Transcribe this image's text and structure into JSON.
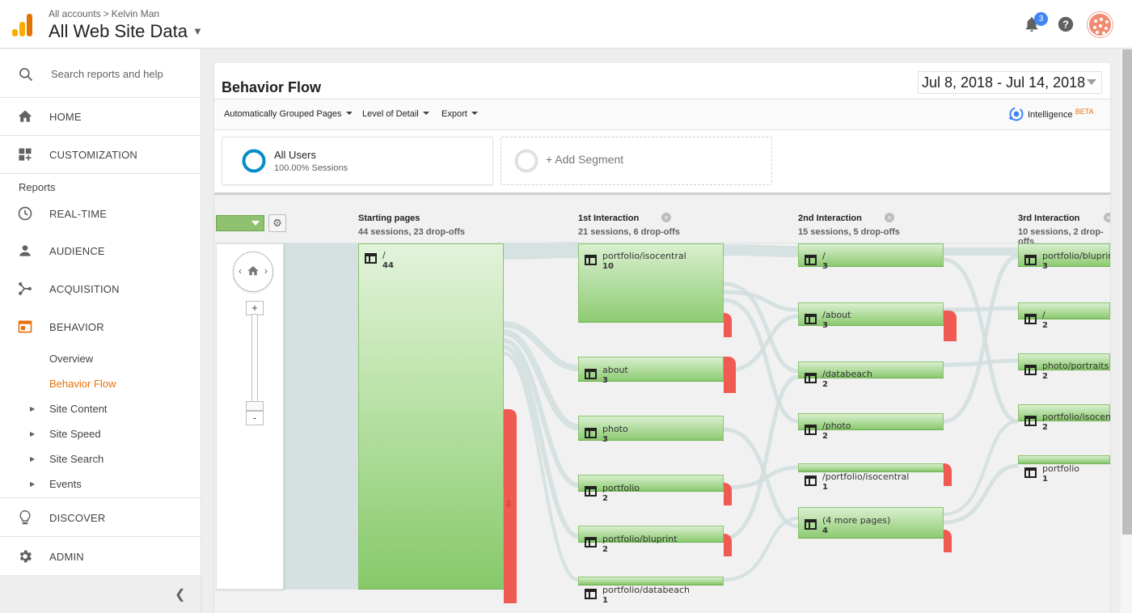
{
  "header": {
    "breadcrumb": [
      "All accounts",
      "Kelvin Man"
    ],
    "breadcrumb_sep": ">",
    "property": "All Web Site Data",
    "notification_count": "3"
  },
  "sidebar": {
    "search_placeholder": "Search reports and help",
    "home": "HOME",
    "customization": "CUSTOMIZATION",
    "reports_heading": "Reports",
    "realtime": "REAL-TIME",
    "audience": "AUDIENCE",
    "acquisition": "ACQUISITION",
    "behavior": "BEHAVIOR",
    "behavior_sub": {
      "overview": "Overview",
      "behavior_flow": "Behavior Flow",
      "site_content": "Site Content",
      "site_speed": "Site Speed",
      "site_search": "Site Search",
      "events": "Events"
    },
    "discover": "DISCOVER",
    "admin": "ADMIN",
    "accent_color": "#e8710a"
  },
  "report": {
    "title": "Behavior Flow",
    "date_range": "Jul 8, 2018 - Jul 14, 2018",
    "toolbar": {
      "grouped_pages": "Automatically Grouped Pages",
      "level_of_detail": "Level of Detail",
      "export": "Export",
      "intelligence": "Intelligence",
      "beta": "BETA"
    },
    "segments": {
      "all_users": "All Users",
      "all_users_sub": "100.00% Sessions",
      "add_segment": "+ Add Segment"
    }
  },
  "flow": {
    "columns": [
      {
        "title": "Starting pages",
        "summary": "44 sessions, 23 drop-offs"
      },
      {
        "title": "1st Interaction",
        "summary": "21 sessions, 6 drop-offs"
      },
      {
        "title": "2nd Interaction",
        "summary": "15 sessions, 5 drop-offs"
      },
      {
        "title": "3rd Interaction",
        "summary": "10 sessions, 2 drop-offs"
      }
    ],
    "starting": [
      {
        "page": "/",
        "sessions": "44"
      }
    ],
    "first": [
      {
        "page": "portfolio/isocentral",
        "sessions": "10"
      },
      {
        "page": "about",
        "sessions": "3"
      },
      {
        "page": "photo",
        "sessions": "3"
      },
      {
        "page": "portfolio",
        "sessions": "2"
      },
      {
        "page": "portfolio/bluprint",
        "sessions": "2"
      },
      {
        "page": "portfolio/databeach",
        "sessions": "1"
      }
    ],
    "second": [
      {
        "page": "/",
        "sessions": "3"
      },
      {
        "page": "/about",
        "sessions": "3"
      },
      {
        "page": "/databeach",
        "sessions": "2"
      },
      {
        "page": "/photo",
        "sessions": "2"
      },
      {
        "page": "/portfolio/isocentral",
        "sessions": "1"
      },
      {
        "page": "(4 more pages)",
        "sessions": "4"
      }
    ],
    "third": [
      {
        "page": "portfolio/bluprint",
        "sessions": "3"
      },
      {
        "page": "/",
        "sessions": "2"
      },
      {
        "page": "photo/portraits",
        "sessions": "2"
      },
      {
        "page": "portfolio/isocent",
        "sessions": "2"
      },
      {
        "page": "portfolio",
        "sessions": "1"
      }
    ],
    "colors": {
      "node": "#8fcc74",
      "dropoff": "#ef5b52",
      "link": "#d5e0e0"
    }
  }
}
